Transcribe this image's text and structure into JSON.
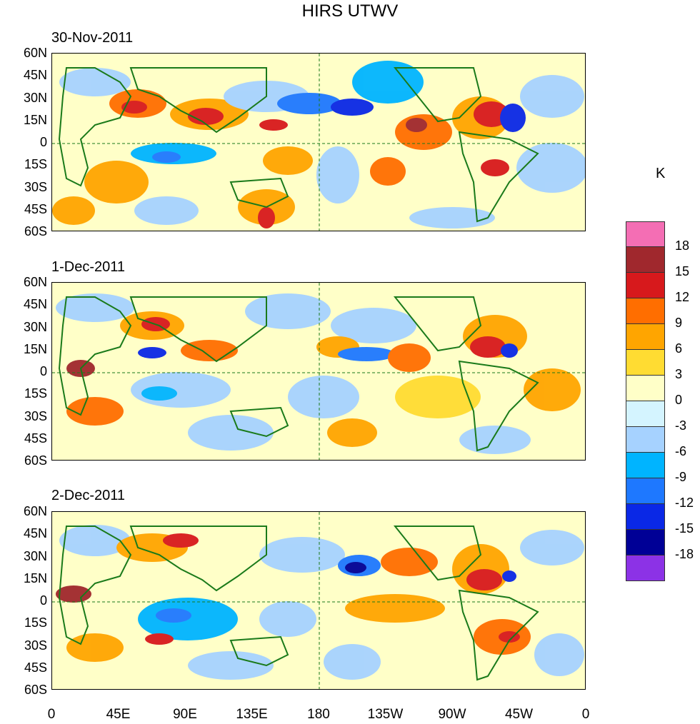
{
  "figure": {
    "title": "HIRS UTWV",
    "units": "K"
  },
  "panels": [
    {
      "date": "30-Nov-2011"
    },
    {
      "date": "1-Dec-2011"
    },
    {
      "date": "2-Dec-2011"
    }
  ],
  "y_axis_labels": [
    "60N",
    "45N",
    "30N",
    "15N",
    "0",
    "15S",
    "30S",
    "45S",
    "60S"
  ],
  "x_axis_labels": [
    "0",
    "45E",
    "90E",
    "135E",
    "180",
    "135W",
    "90W",
    "45W",
    "0"
  ],
  "colorbar": {
    "labels": [
      "18",
      "15",
      "12",
      "9",
      "6",
      "3",
      "0",
      "-3",
      "-6",
      "-9",
      "-12",
      "-15",
      "-18"
    ],
    "colors": [
      "#f46eb4",
      "#a0282d",
      "#d7191c",
      "#ff6e00",
      "#ffa500",
      "#ffdc32",
      "#ffffc8",
      "#d4f4ff",
      "#a6d2ff",
      "#00b4ff",
      "#1e78ff",
      "#0a28e6",
      "#000096",
      "#8c32e6"
    ]
  },
  "colors": {
    "coastline": "#1a7a1a",
    "grid": "#1a7a1a"
  }
}
